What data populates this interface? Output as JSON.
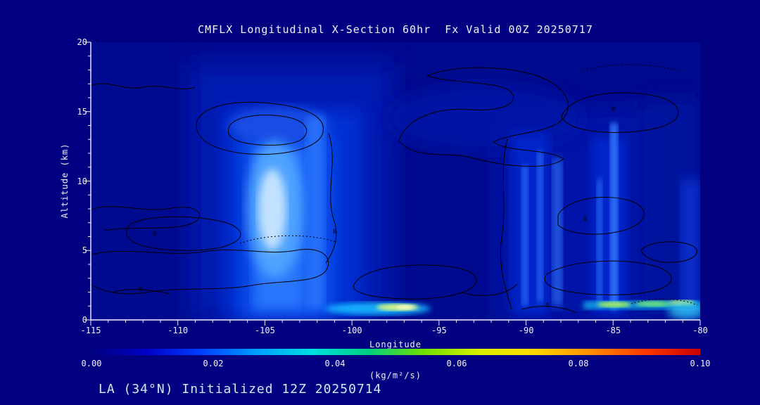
{
  "figure": {
    "title": "CMFLX Longitudinal X-Section 60hr  Fx Valid 00Z 20250717",
    "caption": "LA (34°N) Initialized 12Z 20250714",
    "background_color": "#000080",
    "text_color": "#f2f2ff",
    "caption_color": "#cfe9f5"
  },
  "axes": {
    "x_label": "Longitude",
    "y_label": "Altitude (km)",
    "x_ticks": [
      "-115",
      "-110",
      "-105",
      "-100",
      "-95",
      "-90",
      "-85",
      "-80"
    ],
    "y_ticks": [
      "0",
      "5",
      "10",
      "15",
      "20"
    ]
  },
  "colorbar": {
    "tick_labels": [
      "0.00",
      "0.02",
      "0.04",
      "0.06",
      "0.08",
      "0.10"
    ],
    "units_label": "(kg/m²/s)",
    "min": 0.0,
    "max": 0.1,
    "colors": [
      "#000080",
      "#0000c8",
      "#0040ff",
      "#00a0ff",
      "#00e0e0",
      "#00d080",
      "#70e000",
      "#d8f000",
      "#ffd800",
      "#ff9000",
      "#ff3800",
      "#c80000"
    ]
  },
  "chart_data": {
    "type": "heatmap",
    "title": "CMFLX Longitudinal X-Section 60hr Fx Valid 00Z 20250717",
    "variable": "CMFLX",
    "forecast_hour": 60,
    "valid": "00Z 20250717",
    "init": "12Z 20250714",
    "cross_section_lat": "34°N",
    "xlabel": "Longitude",
    "ylabel": "Altitude (km)",
    "xlim": [
      -115,
      -80
    ],
    "ylim": [
      0,
      20
    ],
    "colorbar": {
      "min": 0.0,
      "max": 0.1,
      "ticks": [
        0.0,
        0.02,
        0.04,
        0.06,
        0.08,
        0.1
      ],
      "units": "kg/m²/s"
    },
    "grid": {
      "x_longitude": [
        -115,
        -110,
        -105,
        -100,
        -95,
        -90,
        -85,
        -80
      ],
      "y_altitude_km": [
        0,
        5,
        10,
        15,
        20
      ],
      "values_kg_m2_s": [
        [
          0.002,
          0.004,
          0.015,
          0.045,
          0.004,
          0.01,
          0.05,
          0.015
        ],
        [
          0.002,
          0.004,
          0.03,
          0.022,
          0.003,
          0.012,
          0.012,
          0.006
        ],
        [
          0.001,
          0.003,
          0.028,
          0.02,
          0.002,
          0.012,
          0.012,
          0.005
        ],
        [
          0.001,
          0.002,
          0.006,
          0.004,
          0.001,
          0.003,
          0.004,
          0.002
        ],
        [
          0.0,
          0.0,
          0.001,
          0.001,
          0.0,
          0.001,
          0.001,
          0.0
        ]
      ]
    },
    "features": [
      {
        "name": "primary deep moisture-flux band",
        "lon_range": [
          -107,
          -100
        ],
        "alt_range_km": [
          0,
          14.5
        ],
        "peak_value": 0.035
      },
      {
        "name": "near-surface flux streak (central)",
        "lon_range": [
          -101,
          -96
        ],
        "alt_km": 1,
        "peak_value": 0.06
      },
      {
        "name": "secondary flux band",
        "lon_range": [
          -91,
          -88
        ],
        "alt_range_km": [
          0.5,
          13
        ],
        "peak_value": 0.02
      },
      {
        "name": "third flux band",
        "lon_range": [
          -86,
          -84
        ],
        "alt_range_km": [
          0.5,
          14
        ],
        "peak_value": 0.025
      },
      {
        "name": "near-surface flux streak (east)",
        "lon_range": [
          -87,
          -80.5
        ],
        "alt_km": 1,
        "peak_value": 0.055
      }
    ],
    "contours": {
      "color": "black",
      "style": "solid and dotted overlay contours",
      "label": "0",
      "labels_shown": [
        "0"
      ]
    }
  }
}
